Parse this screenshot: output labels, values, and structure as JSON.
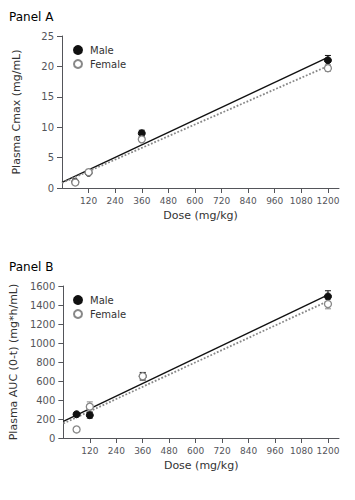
{
  "chart_data": [
    {
      "type": "scatter",
      "title": "Panel A",
      "xlabel": "Dose (mg/kg)",
      "ylabel": "Plasma Cmax (mg/mL)",
      "xlim": [
        0,
        1250
      ],
      "ylim": [
        0,
        25
      ],
      "xticks": [
        120,
        240,
        360,
        480,
        600,
        720,
        840,
        960,
        1080,
        1200
      ],
      "yticks": [
        0,
        5,
        10,
        15,
        20,
        25
      ],
      "grid": false,
      "legend": "upper left",
      "series": [
        {
          "name": "Male",
          "color": "#111111",
          "marker": "circle",
          "line_style": "solid",
          "x": [
            60,
            120,
            360,
            1200
          ],
          "values": [
            1.0,
            2.5,
            9.0,
            21.0
          ],
          "errors": [
            0.1,
            0.2,
            0.5,
            0.8
          ],
          "fit_x": [
            0,
            1200
          ],
          "fit_values": [
            0.9247,
            21.4772
          ]
        },
        {
          "name": "Female",
          "color": "#888888",
          "marker": "open_circle",
          "line_style": "dotted",
          "x": [
            60,
            120,
            360,
            1200
          ],
          "values": [
            0.9,
            2.6,
            8.0,
            19.7
          ],
          "errors": [
            0.1,
            0.2,
            0.4,
            0.5
          ],
          "fit_x": [
            0,
            1200
          ],
          "fit_values": [
            0.8281,
            20.061
          ]
        }
      ]
    },
    {
      "type": "scatter",
      "title": "Panel B",
      "xlabel": "Dose (mg/kg)",
      "ylabel": "Plasma AUC (0-t) (mg*h/mL)",
      "xlim": [
        0,
        1250
      ],
      "ylim": [
        0,
        1600
      ],
      "xticks": [
        120,
        240,
        360,
        480,
        600,
        720,
        840,
        960,
        1080,
        1200
      ],
      "yticks": [
        0,
        200,
        400,
        600,
        800,
        1000,
        1200,
        1400,
        1600
      ],
      "grid": false,
      "legend": "upper left",
      "series": [
        {
          "name": "Male",
          "color": "#111111",
          "marker": "circle",
          "line_style": "solid",
          "x": [
            60,
            120,
            360,
            1200
          ],
          "values": [
            250,
            240,
            650,
            1490
          ],
          "errors": [
            20,
            30,
            40,
            60
          ],
          "fit_x": [
            0,
            1200
          ],
          "fit_values": [
            174.82,
            1506.35
          ]
        },
        {
          "name": "Female",
          "color": "#888888",
          "marker": "open_circle",
          "line_style": "dotted",
          "x": [
            60,
            120,
            360,
            1200
          ],
          "values": [
            90,
            330,
            650,
            1410
          ],
          "errors": [
            10,
            50,
            30,
            50
          ],
          "fit_x": [
            0,
            1200
          ],
          "fit_values": [
            152.8,
            1441.64
          ]
        }
      ]
    }
  ]
}
